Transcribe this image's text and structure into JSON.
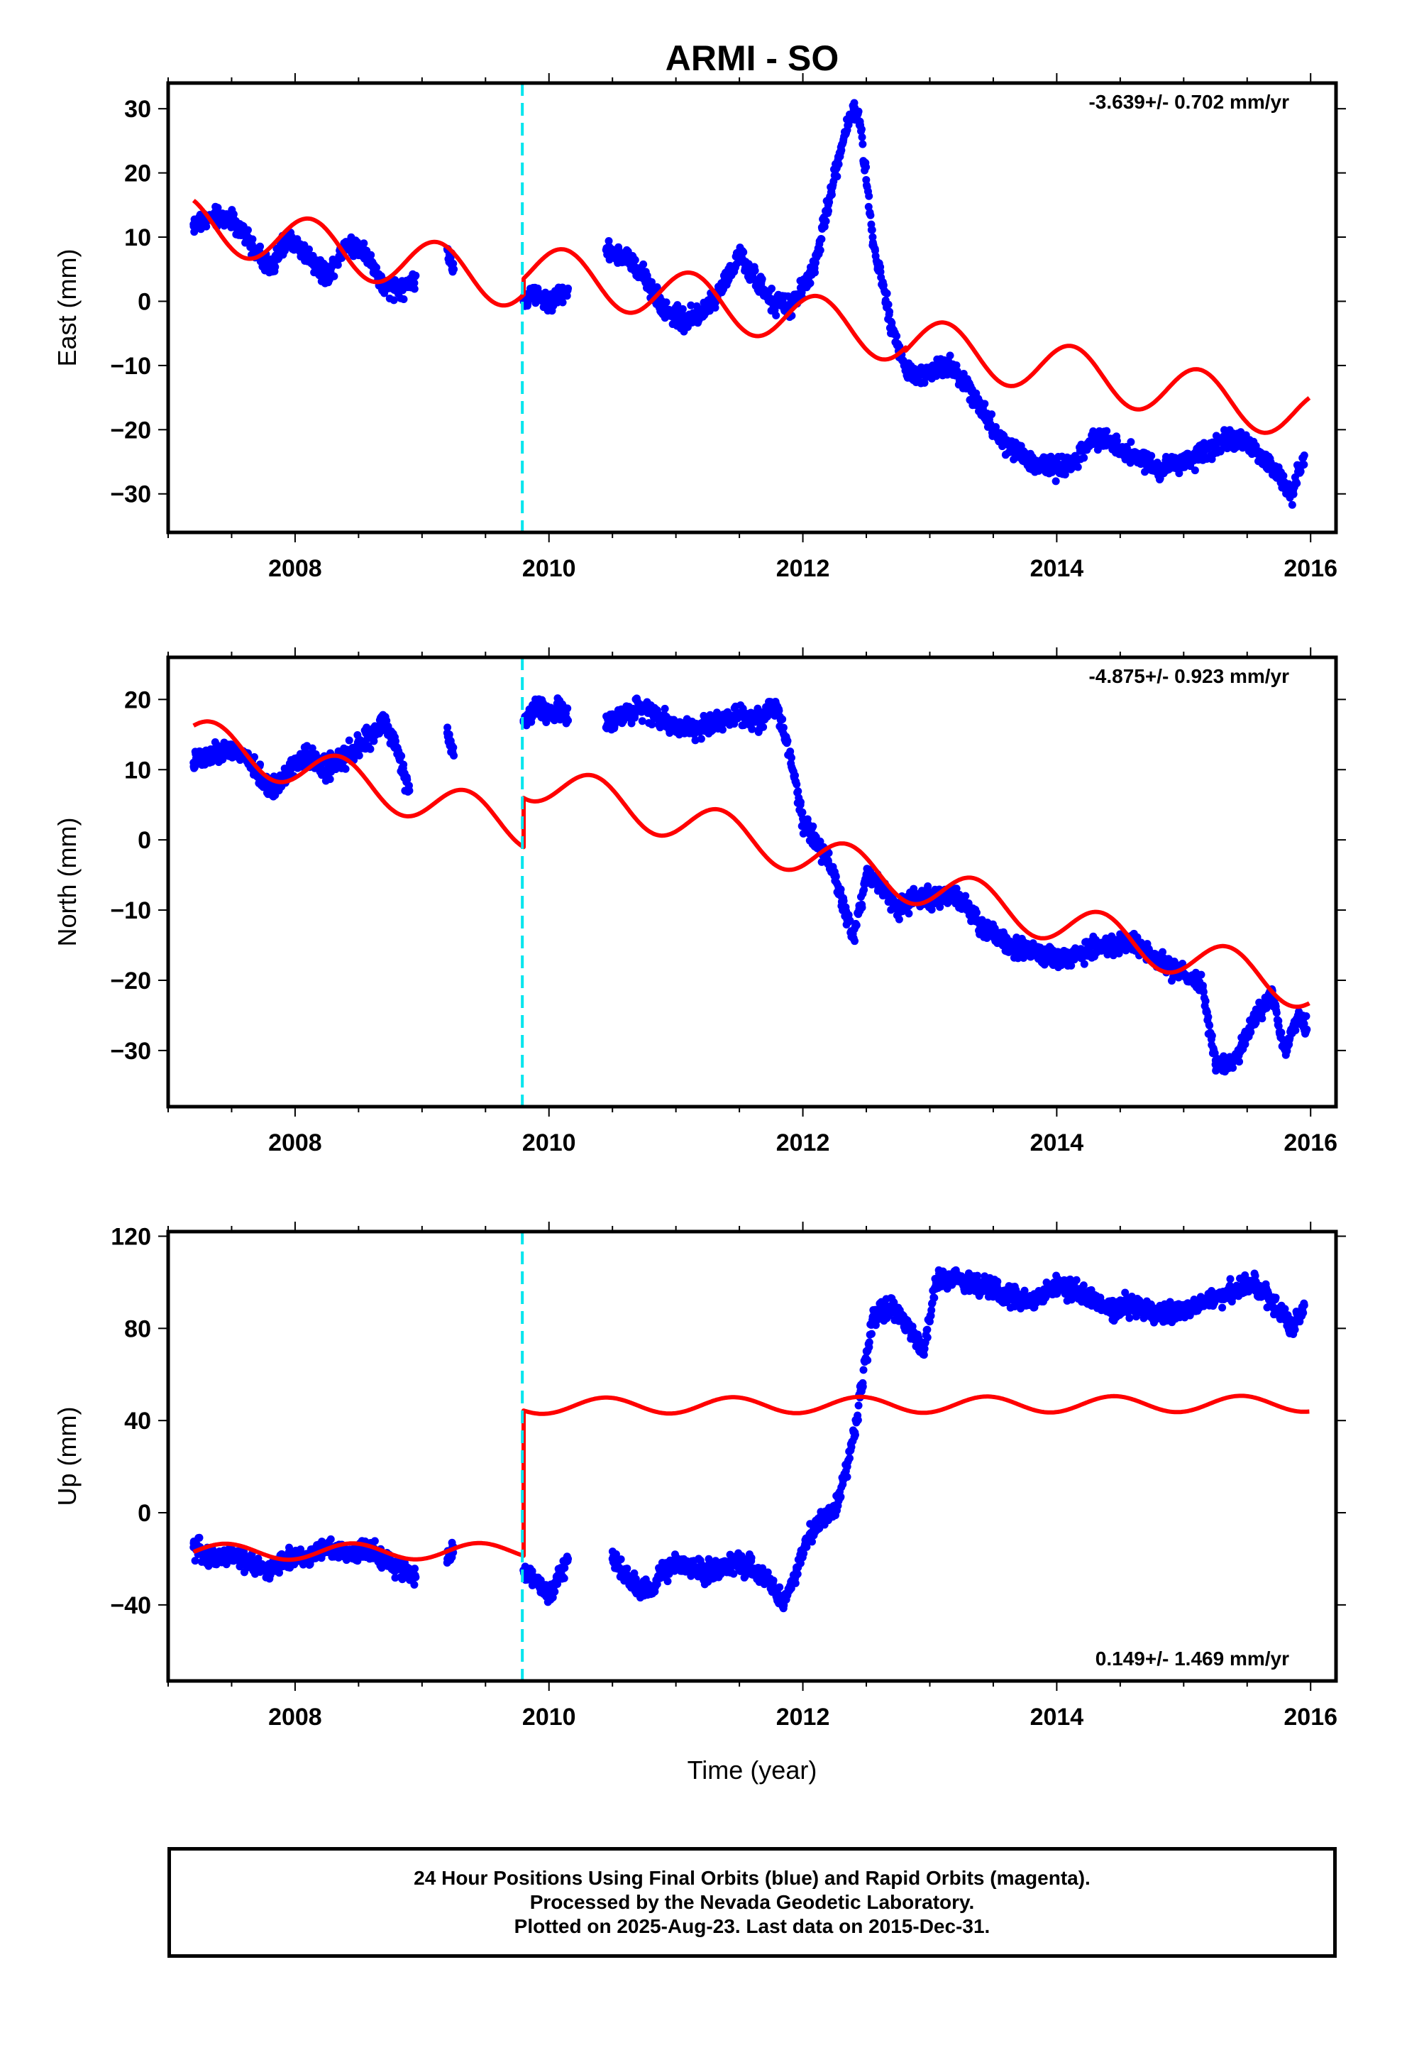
{
  "chart_data": [
    {
      "type": "scatter",
      "title": "ARMI - SO",
      "ylabel": "East (mm)",
      "xlabel": "",
      "xlim": [
        2007.0,
        2016.2
      ],
      "ylim": [
        -36,
        34
      ],
      "xticks": [
        2008,
        2010,
        2012,
        2014,
        2016
      ],
      "yticks": [
        -30,
        -20,
        -10,
        0,
        10,
        20,
        30
      ],
      "rate_text": "-3.639+/- 0.702 mm/yr",
      "rate_position": "top-right",
      "event_line_x": 2009.79,
      "event_line_color": "#00e5ee",
      "series": [
        {
          "color": "#0000ff",
          "segments": [
            {
              "x": [
                2007.2,
                2007.35,
                2007.5,
                2007.65,
                2007.8,
                2007.95,
                2008.1,
                2008.25,
                2008.4,
                2008.55,
                2008.7,
                2008.85,
                2008.95
              ],
              "y": [
                12,
                13,
                13,
                9,
                5,
                10,
                7,
                4,
                9,
                8,
                2,
                2,
                4
              ]
            },
            {
              "x": [
                2009.2,
                2009.25
              ],
              "y": [
                8,
                5
              ]
            },
            {
              "x": [
                2009.8,
                2009.9,
                2010.0,
                2010.1,
                2010.15
              ],
              "y": [
                0,
                1,
                0,
                1,
                2
              ]
            },
            {
              "x": [
                2010.45,
                2010.6,
                2010.75,
                2010.9,
                2011.05,
                2011.2,
                2011.35,
                2011.5,
                2011.6,
                2011.75,
                2011.9,
                2012.0,
                2012.1,
                2012.2,
                2012.3,
                2012.4,
                2012.45,
                2012.55,
                2012.7,
                2012.8,
                2012.9,
                2013.0,
                2013.15,
                2013.3,
                2013.5,
                2013.65,
                2013.8,
                2014.0,
                2014.15,
                2014.3,
                2014.45,
                2014.6,
                2014.8,
                2015.0,
                2015.15,
                2015.3,
                2015.45,
                2015.6,
                2015.75,
                2015.85,
                2015.95
              ],
              "y": [
                8,
                7,
                4,
                -1,
                -3,
                -2,
                2,
                7,
                4,
                0,
                -1,
                2,
                6,
                15,
                24,
                30,
                28,
                10,
                -4,
                -10,
                -12,
                -11,
                -10,
                -13,
                -20,
                -23,
                -25,
                -26,
                -25,
                -21,
                -22,
                -24,
                -26,
                -25,
                -24,
                -22,
                -21,
                -24,
                -27,
                -30,
                -24
              ]
            }
          ]
        },
        {
          "color": "#ff0000",
          "model": {
            "x0": 2007.2,
            "c0": 12.2,
            "rate": -3.639,
            "ann": 4.0,
            "phase": 0.12,
            "offsets": [
              {
                "t": 2009.79,
                "d": 2.5
              },
              {
                "t": 2012.8,
                "d": -0.5
              }
            ]
          }
        }
      ]
    },
    {
      "type": "scatter",
      "title": "",
      "ylabel": "North (mm)",
      "xlabel": "",
      "xlim": [
        2007.0,
        2016.2
      ],
      "ylim": [
        -38,
        26
      ],
      "xticks": [
        2008,
        2010,
        2012,
        2014,
        2016
      ],
      "yticks": [
        -30,
        -20,
        -10,
        0,
        10,
        20
      ],
      "rate_text": "-4.875+/- 0.923 mm/yr",
      "rate_position": "top-right",
      "event_line_x": 2009.79,
      "event_line_color": "#00e5ee",
      "series": [
        {
          "color": "#0000ff",
          "segments": [
            {
              "x": [
                2007.2,
                2007.35,
                2007.5,
                2007.65,
                2007.8,
                2007.95,
                2008.1,
                2008.25,
                2008.4,
                2008.55,
                2008.7,
                2008.8,
                2008.9
              ],
              "y": [
                11,
                12,
                13,
                11,
                7,
                10,
                12,
                10,
                12,
                14,
                17,
                13,
                7
              ]
            },
            {
              "x": [
                2009.2,
                2009.25
              ],
              "y": [
                16,
                12
              ]
            },
            {
              "x": [
                2009.8,
                2009.9,
                2010.0,
                2010.1,
                2010.15
              ],
              "y": [
                17,
                19,
                18,
                19,
                17
              ]
            },
            {
              "x": [
                2010.45,
                2010.6,
                2010.75,
                2010.9,
                2011.05,
                2011.2,
                2011.35,
                2011.5,
                2011.65,
                2011.8,
                2011.9,
                2012.0,
                2012.1,
                2012.2,
                2012.3,
                2012.4,
                2012.5,
                2012.6,
                2012.75,
                2012.9,
                2013.05,
                2013.2,
                2013.4,
                2013.6,
                2013.8,
                2014.0,
                2014.2,
                2014.4,
                2014.6,
                2014.8,
                2015.0,
                2015.15,
                2015.25,
                2015.35,
                2015.45,
                2015.55,
                2015.7,
                2015.8,
                2015.9,
                2015.97
              ],
              "y": [
                16,
                18,
                19,
                17,
                16,
                16,
                17,
                18,
                17,
                19,
                12,
                3,
                0,
                -3,
                -8,
                -14,
                -5,
                -6,
                -10,
                -8,
                -8,
                -8,
                -12,
                -15,
                -16,
                -17,
                -16,
                -15,
                -15,
                -17,
                -19,
                -21,
                -32,
                -32,
                -30,
                -26,
                -22,
                -30,
                -25,
                -27
              ]
            }
          ]
        },
        {
          "color": "#ff0000",
          "model": {
            "x0": 2007.2,
            "c0": 14.5,
            "rate": -4.875,
            "ann": 3.0,
            "phase": 0.35,
            "offsets": [
              {
                "t": 2009.79,
                "d": 7.0
              },
              {
                "t": 2012.8,
                "d": 0.0
              }
            ]
          }
        }
      ]
    },
    {
      "type": "scatter",
      "title": "",
      "ylabel": "Up (mm)",
      "xlabel": "Time (year)",
      "xlim": [
        2007.0,
        2016.2
      ],
      "ylim": [
        -73,
        122
      ],
      "xticks": [
        2008,
        2010,
        2012,
        2014,
        2016
      ],
      "yticks": [
        -40,
        0,
        40,
        80,
        120
      ],
      "rate_text": "0.149+/- 1.469 mm/yr",
      "rate_position": "bottom-right",
      "event_line_x": 2009.79,
      "event_line_color": "#00e5ee",
      "series": [
        {
          "color": "#0000ff",
          "segments": [
            {
              "x": [
                2007.2,
                2007.35,
                2007.5,
                2007.65,
                2007.8,
                2007.95,
                2008.1,
                2008.25,
                2008.4,
                2008.55,
                2008.7,
                2008.85,
                2008.95
              ],
              "y": [
                -15,
                -20,
                -18,
                -22,
                -25,
                -20,
                -20,
                -15,
                -18,
                -15,
                -20,
                -25,
                -28
              ]
            },
            {
              "x": [
                2009.2,
                2009.25
              ],
              "y": [
                -20,
                -15
              ]
            },
            {
              "x": [
                2009.8,
                2009.9,
                2010.0,
                2010.1,
                2010.15
              ],
              "y": [
                -25,
                -30,
                -35,
                -25,
                -20
              ]
            },
            {
              "x": [
                2010.5,
                2010.65,
                2010.8,
                2010.9,
                2011.0,
                2011.15,
                2011.3,
                2011.45,
                2011.6,
                2011.75,
                2011.85,
                2011.95,
                2012.05,
                2012.15,
                2012.25,
                2012.35,
                2012.45,
                2012.55,
                2012.7,
                2012.85,
                2012.95,
                2013.05,
                2013.2,
                2013.4,
                2013.6,
                2013.8,
                2014.0,
                2014.2,
                2014.4,
                2014.6,
                2014.8,
                2015.0,
                2015.2,
                2015.4,
                2015.55,
                2015.7,
                2015.85,
                2015.95
              ],
              "y": [
                -20,
                -30,
                -35,
                -25,
                -22,
                -25,
                -25,
                -22,
                -24,
                -30,
                -40,
                -25,
                -10,
                -2,
                0,
                20,
                50,
                85,
                90,
                80,
                70,
                100,
                102,
                98,
                95,
                92,
                98,
                95,
                88,
                90,
                85,
                88,
                92,
                96,
                100,
                92,
                80,
                90
              ]
            }
          ]
        },
        {
          "color": "#ff0000",
          "model": {
            "x0": 2007.2,
            "c0": -17,
            "rate": 0.149,
            "ann": 3.5,
            "phase": 0.45,
            "offsets": [
              {
                "t": 2009.79,
                "d": 63.0
              }
            ]
          }
        }
      ]
    }
  ],
  "footer": {
    "line1": "24 Hour Positions Using Final Orbits (blue) and Rapid Orbits (magenta).",
    "line2": "Processed by the Nevada Geodetic Laboratory.",
    "line3": "Plotted on 2025-Aug-23. Last data on 2015-Dec-31."
  }
}
